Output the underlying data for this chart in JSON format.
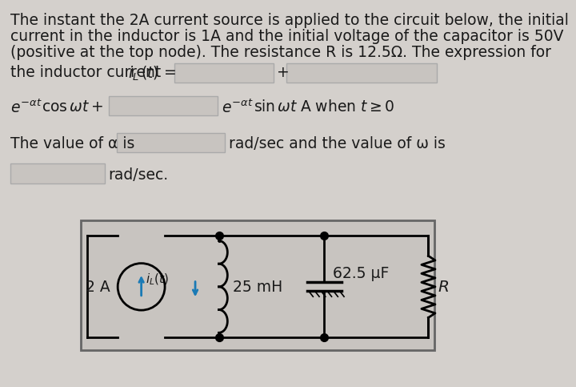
{
  "bg_color": "#d4d0cc",
  "input_box_color": "#c8c4c0",
  "input_box_edge": "#aaaaaa",
  "circuit_box_color": "#c8c4c0",
  "circuit_box_edge": "#666666",
  "text_color": "#1a1a1a",
  "blue_color": "#1a7ab5",
  "line1": "The instant the 2A current source is applied to the circuit below, the initial",
  "line2": "current in the inductor is 1A and the initial voltage of the capacitor is 50V",
  "line3": "(positive at the top node). The resistance R is 12.5Ω. The expression for",
  "cs_label": "2 A",
  "ind_label": "25 mH",
  "cap_label": "62.5 μF",
  "res_label": "R"
}
